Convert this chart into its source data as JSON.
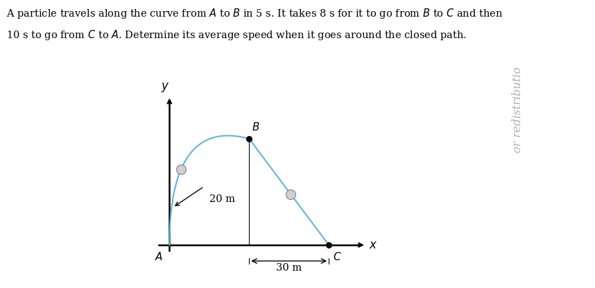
{
  "text_line1": "A particle travels along the curve from $A$ to $B$ in 5 s. It takes 8 s for it to go from $B$ to $C$ and then",
  "text_line2": "10 s to go from $C$ to $A$. Determine its average speed when it goes around the closed path.",
  "A": [
    0,
    0
  ],
  "B": [
    15,
    20
  ],
  "C": [
    30,
    0
  ],
  "cp_AB": [
    0,
    24
  ],
  "curve_color": "#5bb8d4",
  "axis_color": "#000000",
  "background_color": "#ffffff",
  "label_20m": "20 m",
  "label_30m": "30 m",
  "watermark": "or redistributio",
  "watermark_color": "#b0b0b0",
  "t_mid1": 0.38,
  "t_mid2": 0.52,
  "t_arrow": 0.15,
  "figsize": [
    8.58,
    4.15
  ],
  "dpi": 100
}
